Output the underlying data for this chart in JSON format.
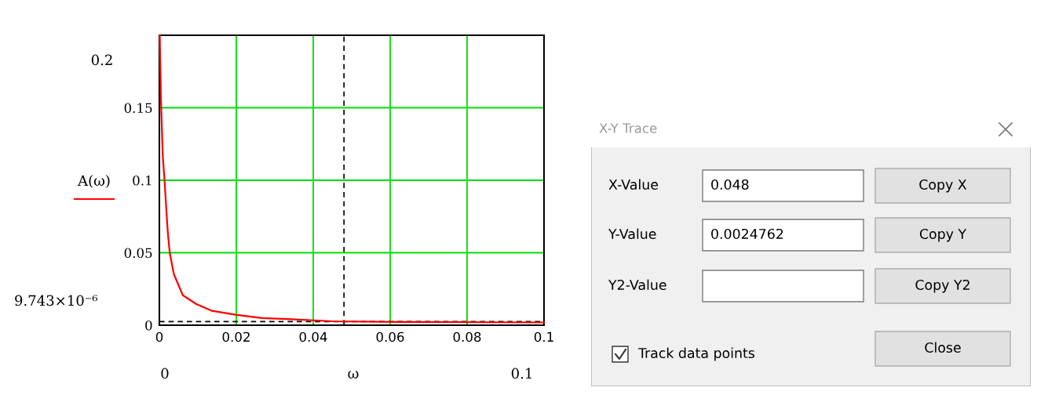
{
  "chart_data": [
    {
      "type": "line",
      "xlabel": "ω",
      "xlim": [
        0,
        0.1
      ],
      "ylim": [
        0,
        0.2
      ],
      "xticks": [
        0,
        0.02,
        0.04,
        0.06,
        0.08,
        0.1
      ],
      "yticks": [
        0,
        0.05,
        0.1,
        0.15
      ],
      "grid": true,
      "x": [
        0.0001,
        0.0004,
        0.0009,
        0.0014,
        0.0018,
        0.0022,
        0.0027,
        0.0038,
        0.0061,
        0.0096,
        0.0137,
        0.0198,
        0.0266,
        0.0344,
        0.045,
        0.0647,
        0.1
      ],
      "series": [
        {
          "name": "A(ω)",
          "color": "#ff0000",
          "values": [
            0.2,
            0.157,
            0.116,
            0.098,
            0.08,
            0.064,
            0.05,
            0.035,
            0.0207,
            0.0146,
            0.0099,
            0.0072,
            0.0049,
            0.0041,
            0.0027,
            0.0022,
            0.0019
          ]
        }
      ],
      "ref_lines": [
        {
          "axis": "x",
          "value": 0.048,
          "color": "#000000",
          "line_style": "dashed"
        },
        {
          "axis": "y",
          "value": 0.0024762,
          "color": "#000000",
          "line_style": "dashed"
        }
      ],
      "annotations": [
        "0.2",
        "9.743×10⁻⁶",
        "0",
        "0.1"
      ]
    },
    {
      "type": "other",
      "title": "X-Y Trace",
      "annotations": [
        "X-Value",
        "0.048",
        "Copy X",
        "Y-Value",
        "0.0024762",
        "Copy Y",
        "Y2-Value",
        "Copy Y2",
        "Track data points",
        "Close"
      ]
    }
  ]
}
